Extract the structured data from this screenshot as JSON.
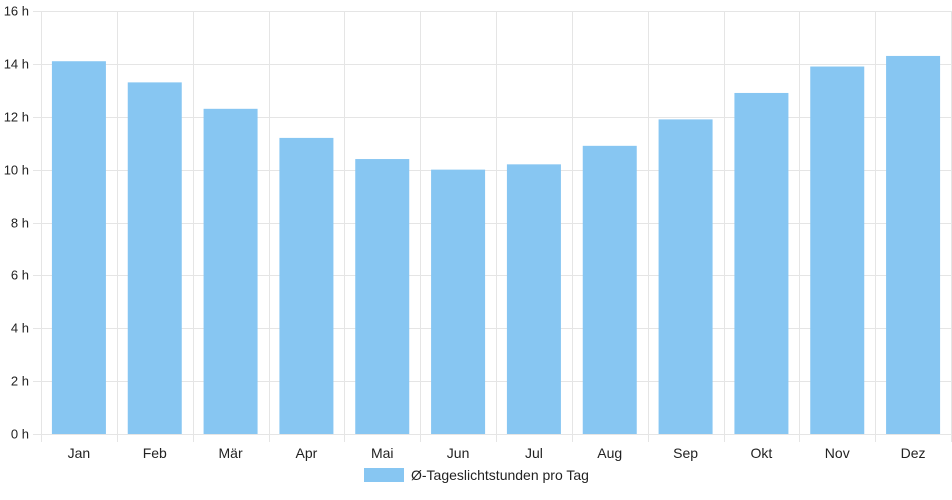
{
  "chart_data": {
    "type": "bar",
    "categories": [
      "Jan",
      "Feb",
      "Mär",
      "Apr",
      "Mai",
      "Jun",
      "Jul",
      "Aug",
      "Sep",
      "Okt",
      "Nov",
      "Dez"
    ],
    "series": [
      {
        "name": "Ø-Tageslichtstunden pro Tag",
        "values": [
          14.1,
          13.3,
          12.3,
          11.2,
          10.4,
          10.0,
          10.2,
          10.9,
          11.9,
          12.9,
          13.9,
          14.3
        ]
      }
    ],
    "y_ticks": [
      "0 h",
      "2 h",
      "4 h",
      "6 h",
      "8 h",
      "10 h",
      "12 h",
      "14 h",
      "16 h"
    ],
    "ylim": [
      0,
      16
    ],
    "y_tick_step": 2,
    "grid": true,
    "legend_position": "bottom",
    "bar_color": "#87c6f2",
    "grid_color": "#e5e5e5"
  }
}
